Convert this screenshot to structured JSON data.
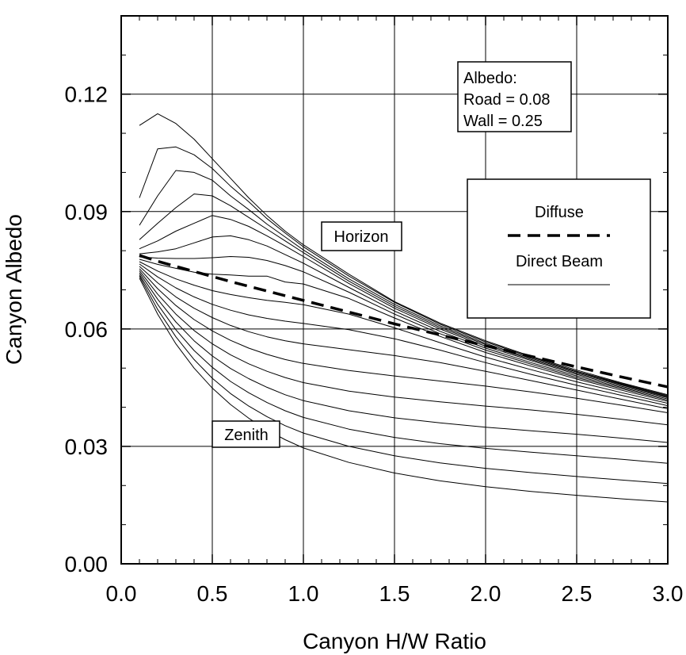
{
  "chart_data": {
    "type": "line",
    "xlabel": "Canyon H/W Ratio",
    "ylabel": "Canyon Albedo",
    "xlim": [
      0.0,
      3.0
    ],
    "ylim": [
      0.0,
      0.14
    ],
    "xticks": [
      "0.0",
      "0.5",
      "1.0",
      "1.5",
      "2.0",
      "2.5",
      "3.0"
    ],
    "yticks": [
      "0.00",
      "0.03",
      "0.06",
      "0.09",
      "0.12"
    ],
    "grid": true,
    "x": [
      0.1,
      0.2,
      0.3,
      0.4,
      0.5,
      0.6,
      0.7,
      0.8,
      0.9,
      1.0,
      1.25,
      1.5,
      1.75,
      2.0,
      2.25,
      2.5,
      2.75,
      3.0
    ],
    "series": [
      {
        "style": "solid",
        "values": [
          0.112,
          0.115,
          0.1125,
          0.1085,
          0.1035,
          0.0985,
          0.0935,
          0.089,
          0.085,
          0.0815,
          0.074,
          0.067,
          0.0615,
          0.057,
          0.053,
          0.0495,
          0.0462,
          0.0432
        ]
      },
      {
        "style": "solid",
        "values": [
          0.0935,
          0.106,
          0.1065,
          0.1045,
          0.101,
          0.0965,
          0.0925,
          0.0882,
          0.0845,
          0.081,
          0.0735,
          0.0668,
          0.0612,
          0.0567,
          0.0528,
          0.0492,
          0.046,
          0.043
        ]
      },
      {
        "style": "solid",
        "values": [
          0.0865,
          0.094,
          0.1005,
          0.1,
          0.098,
          0.094,
          0.0905,
          0.0868,
          0.0835,
          0.0802,
          0.0728,
          0.0663,
          0.0608,
          0.0563,
          0.0525,
          0.049,
          0.0458,
          0.0428
        ]
      },
      {
        "style": "solid",
        "values": [
          0.0828,
          0.087,
          0.091,
          0.0945,
          0.094,
          0.0915,
          0.0885,
          0.0855,
          0.0825,
          0.0795,
          0.0722,
          0.0658,
          0.0604,
          0.056,
          0.0522,
          0.0487,
          0.0456,
          0.0426
        ]
      },
      {
        "style": "solid",
        "values": [
          0.0805,
          0.0825,
          0.085,
          0.087,
          0.089,
          0.088,
          0.0862,
          0.0838,
          0.0812,
          0.0785,
          0.0716,
          0.0653,
          0.06,
          0.0556,
          0.0519,
          0.0484,
          0.0453,
          0.0424
        ]
      },
      {
        "style": "solid",
        "values": [
          0.0792,
          0.0797,
          0.0805,
          0.082,
          0.0835,
          0.0838,
          0.0828,
          0.0812,
          0.079,
          0.0768,
          0.0706,
          0.0646,
          0.0594,
          0.0551,
          0.0514,
          0.048,
          0.045,
          0.0421
        ]
      },
      {
        "style": "solid",
        "values": [
          0.0784,
          0.0781,
          0.078,
          0.078,
          0.0782,
          0.0785,
          0.0783,
          0.0775,
          0.0762,
          0.0746,
          0.0694,
          0.0638,
          0.0588,
          0.0546,
          0.051,
          0.0476,
          0.0447,
          0.0418
        ]
      },
      {
        "style": "solid",
        "values": [
          0.0778,
          0.0765,
          0.0755,
          0.0745,
          0.074,
          0.0738,
          0.0735,
          0.0735,
          0.072,
          0.0715,
          0.0678,
          0.0628,
          0.0581,
          0.054,
          0.0505,
          0.0472,
          0.0443,
          0.0415
        ]
      },
      {
        "style": "solid",
        "values": [
          0.0772,
          0.0748,
          0.0728,
          0.0712,
          0.0698,
          0.0688,
          0.068,
          0.0673,
          0.0668,
          0.0662,
          0.0638,
          0.0603,
          0.0565,
          0.0528,
          0.0496,
          0.0465,
          0.0437,
          0.041
        ]
      },
      {
        "style": "solid",
        "values": [
          0.0766,
          0.0733,
          0.0705,
          0.0682,
          0.0663,
          0.0648,
          0.0636,
          0.0627,
          0.062,
          0.0614,
          0.0598,
          0.0575,
          0.0546,
          0.0514,
          0.0484,
          0.0456,
          0.043,
          0.0404
        ]
      },
      {
        "style": "solid",
        "values": [
          0.076,
          0.0718,
          0.0682,
          0.0653,
          0.0629,
          0.0609,
          0.0593,
          0.058,
          0.057,
          0.0562,
          0.0547,
          0.0532,
          0.0514,
          0.0492,
          0.0468,
          0.0444,
          0.042,
          0.0396
        ]
      },
      {
        "style": "solid",
        "values": [
          0.0754,
          0.0703,
          0.066,
          0.0624,
          0.0595,
          0.0571,
          0.0551,
          0.0535,
          0.0522,
          0.0512,
          0.0494,
          0.048,
          0.0467,
          0.0454,
          0.0439,
          0.0423,
          0.0405,
          0.0386
        ]
      },
      {
        "style": "solid",
        "values": [
          0.0749,
          0.0689,
          0.0638,
          0.0596,
          0.0562,
          0.0534,
          0.0511,
          0.0492,
          0.0476,
          0.0463,
          0.0441,
          0.0426,
          0.0414,
          0.0403,
          0.0393,
          0.0382,
          0.0369,
          0.0355
        ]
      },
      {
        "style": "solid",
        "values": [
          0.0744,
          0.0676,
          0.0618,
          0.057,
          0.0531,
          0.0499,
          0.0473,
          0.0451,
          0.0432,
          0.0417,
          0.0391,
          0.0373,
          0.036,
          0.0349,
          0.034,
          0.0331,
          0.0321,
          0.031
        ]
      },
      {
        "style": "solid",
        "values": [
          0.0739,
          0.0663,
          0.0598,
          0.0545,
          0.0502,
          0.0466,
          0.0437,
          0.0412,
          0.0391,
          0.0374,
          0.0344,
          0.0323,
          0.0307,
          0.0295,
          0.0285,
          0.0276,
          0.0267,
          0.0257
        ]
      },
      {
        "style": "solid",
        "values": [
          0.0735,
          0.065,
          0.058,
          0.0522,
          0.0474,
          0.0435,
          0.0403,
          0.0376,
          0.0353,
          0.0334,
          0.03,
          0.0276,
          0.0258,
          0.0244,
          0.0233,
          0.0223,
          0.0214,
          0.0205
        ]
      },
      {
        "style": "solid",
        "values": [
          0.073,
          0.0638,
          0.0562,
          0.05,
          0.0449,
          0.0407,
          0.0372,
          0.0342,
          0.0317,
          0.0296,
          0.0259,
          0.0232,
          0.0212,
          0.0197,
          0.0185,
          0.0175,
          0.0166,
          0.0158
        ]
      },
      {
        "style": "dashed",
        "values": [
          0.0788,
          0.0773,
          0.076,
          0.0747,
          0.0734,
          0.0721,
          0.0709,
          0.0697,
          0.0685,
          0.0673,
          0.0643,
          0.0613,
          0.0585,
          0.0557,
          0.053,
          0.0503,
          0.0477,
          0.0452
        ]
      }
    ],
    "annotations": {
      "albedo_title": "Albedo:",
      "road": "Road = 0.08",
      "wall": "Wall = 0.25",
      "horizon": "Horizon",
      "zenith": "Zenith"
    },
    "legend": {
      "placement": "right",
      "entries": [
        {
          "name": "Diffuse",
          "style": "dashed"
        },
        {
          "name": "Direct Beam",
          "style": "solid"
        }
      ]
    }
  }
}
